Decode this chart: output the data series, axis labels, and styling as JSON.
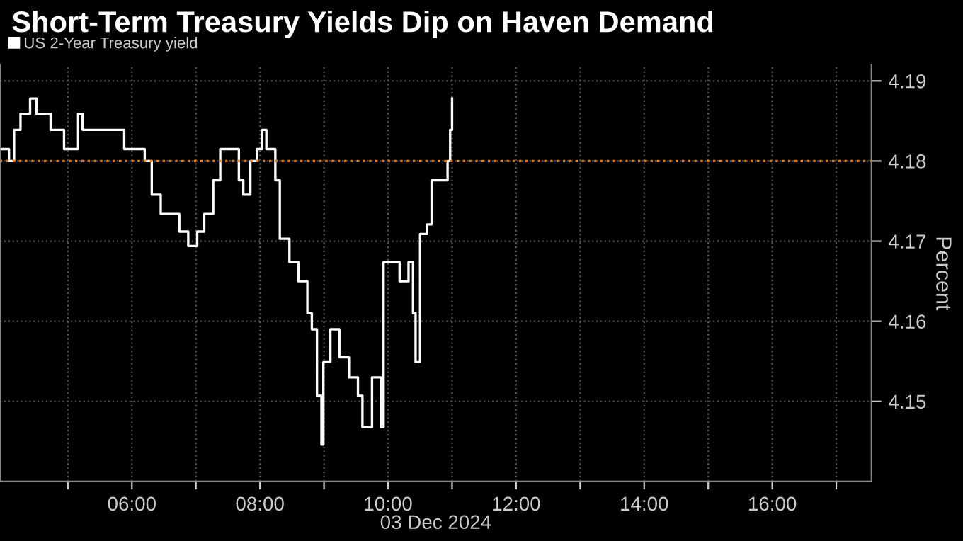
{
  "chart_data": {
    "type": "step",
    "title": "Short-Term Treasury Yields Dip on Haven Demand",
    "xlabel": "03 Dec 2024",
    "ylabel": "Percent",
    "xlim": [
      3.94,
      17.55
    ],
    "ylim": [
      4.14,
      4.192
    ],
    "xticks": [
      {
        "value": 5,
        "label": null
      },
      {
        "value": 6,
        "label": "06:00"
      },
      {
        "value": 7,
        "label": null
      },
      {
        "value": 8,
        "label": "08:00"
      },
      {
        "value": 9,
        "label": null
      },
      {
        "value": 10,
        "label": "10:00"
      },
      {
        "value": 11,
        "label": null
      },
      {
        "value": 12,
        "label": "12:00"
      },
      {
        "value": 13,
        "label": null
      },
      {
        "value": 14,
        "label": "14:00"
      },
      {
        "value": 15,
        "label": null
      },
      {
        "value": 16,
        "label": "16:00"
      },
      {
        "value": 17,
        "label": null
      }
    ],
    "yticks": [
      4.15,
      4.16,
      4.17,
      4.18,
      4.19
    ],
    "grid": true,
    "legend": "top left",
    "ref_lines": [
      {
        "axis": "y",
        "value": 4.18,
        "color": "#e07b20",
        "line_style": "dotted"
      }
    ],
    "series": [
      {
        "name": "US 2-Year Treasury yield",
        "color": "#ffffff",
        "x": [
          3.94,
          4.08,
          4.16,
          4.26,
          4.41,
          4.51,
          4.66,
          4.73,
          4.87,
          4.94,
          5.16,
          5.23,
          5.37,
          5.8,
          5.88,
          6.09,
          6.2,
          6.31,
          6.45,
          6.59,
          6.74,
          6.88,
          7.02,
          7.13,
          7.27,
          7.38,
          7.52,
          7.67,
          7.74,
          7.85,
          7.95,
          8.03,
          8.1,
          8.24,
          8.31,
          8.46,
          8.6,
          8.74,
          8.81,
          8.89,
          8.96,
          8.99,
          9.1,
          9.24,
          9.39,
          9.53,
          9.6,
          9.75,
          9.89,
          9.93,
          10.03,
          10.18,
          10.32,
          10.39,
          10.43,
          10.5,
          10.61,
          10.68,
          10.82,
          10.93,
          10.97,
          11.0
        ],
        "values": [
          4.1815,
          4.18,
          4.1839,
          4.1859,
          4.1878,
          4.1859,
          4.1859,
          4.1839,
          4.1839,
          4.1815,
          4.1859,
          4.1839,
          4.1839,
          4.1839,
          4.1815,
          4.1815,
          4.18,
          4.1758,
          4.1734,
          4.1734,
          4.1712,
          4.1694,
          4.1712,
          4.1734,
          4.1776,
          4.1815,
          4.1815,
          4.1776,
          4.1758,
          4.18,
          4.1815,
          4.1839,
          4.1815,
          4.1776,
          4.1703,
          4.1674,
          4.165,
          4.161,
          4.159,
          4.1507,
          4.1446,
          4.1549,
          4.159,
          4.1555,
          4.153,
          4.1507,
          4.1468,
          4.153,
          4.1468,
          4.1674,
          4.1674,
          4.165,
          4.1674,
          4.161,
          4.1549,
          4.1709,
          4.1721,
          4.1776,
          4.1776,
          4.18,
          4.1839,
          4.1878
        ]
      }
    ]
  }
}
